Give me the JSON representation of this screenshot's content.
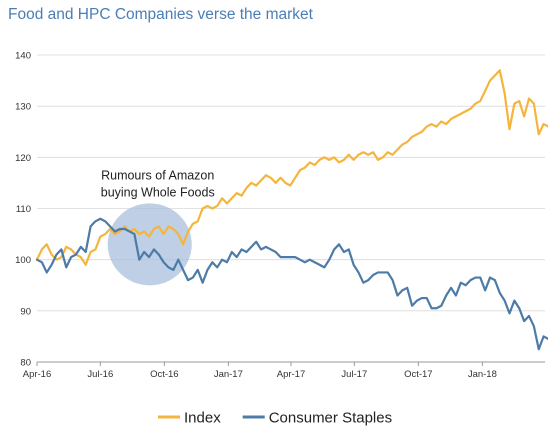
{
  "title": "Food and HPC Companies verse the market",
  "chart_data": {
    "type": "line",
    "title": "Food and HPC Companies verse the market",
    "xlabel": "",
    "ylabel": "",
    "ylim": [
      80,
      140
    ],
    "xlim": [
      "2016-04",
      "2018-04"
    ],
    "yticks": [
      80,
      90,
      100,
      110,
      120,
      130,
      140
    ],
    "xticks": [
      {
        "label": "Apr-16",
        "date": "2016-04"
      },
      {
        "label": "Jul-16",
        "date": "2016-07"
      },
      {
        "label": "Oct-16",
        "date": "2016-10"
      },
      {
        "label": "Jan-17",
        "date": "2017-01"
      },
      {
        "label": "Apr-17",
        "date": "2017-04"
      },
      {
        "label": "Jul-17",
        "date": "2017-07"
      },
      {
        "label": "Oct-17",
        "date": "2017-10"
      },
      {
        "label": "Jan-18",
        "date": "2018-01"
      }
    ],
    "grid": true,
    "legend_position": "bottom",
    "annotation": {
      "lines": [
        "Rumours of Amazon",
        "buying Whole Foods"
      ],
      "highlight_date": "2016-09-10",
      "highlight_value": 103,
      "highlight_color": "#a9bfdc"
    },
    "series": [
      {
        "name": "Index",
        "color": "#f5b53c",
        "points": [
          [
            "2016-04-01",
            100
          ],
          [
            "2016-04-08",
            102
          ],
          [
            "2016-04-15",
            103
          ],
          [
            "2016-04-22",
            101
          ],
          [
            "2016-04-29",
            100
          ],
          [
            "2016-05-06",
            100.5
          ],
          [
            "2016-05-13",
            102.5
          ],
          [
            "2016-05-20",
            102
          ],
          [
            "2016-05-27",
            101
          ],
          [
            "2016-06-03",
            100.5
          ],
          [
            "2016-06-10",
            99
          ],
          [
            "2016-06-17",
            101.5
          ],
          [
            "2016-06-24",
            102
          ],
          [
            "2016-07-01",
            104.5
          ],
          [
            "2016-07-08",
            105
          ],
          [
            "2016-07-15",
            106
          ],
          [
            "2016-07-22",
            105
          ],
          [
            "2016-07-29",
            105.5
          ],
          [
            "2016-08-05",
            106.5
          ],
          [
            "2016-08-12",
            105.5
          ],
          [
            "2016-08-19",
            106
          ],
          [
            "2016-08-26",
            105
          ],
          [
            "2016-09-02",
            105.5
          ],
          [
            "2016-09-09",
            104.5
          ],
          [
            "2016-09-16",
            106
          ],
          [
            "2016-09-23",
            106.5
          ],
          [
            "2016-09-30",
            105
          ],
          [
            "2016-10-07",
            106.5
          ],
          [
            "2016-10-14",
            106
          ],
          [
            "2016-10-21",
            105
          ],
          [
            "2016-10-28",
            103
          ],
          [
            "2016-11-04",
            105.5
          ],
          [
            "2016-11-11",
            107
          ],
          [
            "2016-11-18",
            107.5
          ],
          [
            "2016-11-25",
            110
          ],
          [
            "2016-12-02",
            110.5
          ],
          [
            "2016-12-09",
            110
          ],
          [
            "2016-12-16",
            110.5
          ],
          [
            "2016-12-23",
            112
          ],
          [
            "2016-12-30",
            111
          ],
          [
            "2017-01-06",
            112
          ],
          [
            "2017-01-13",
            113
          ],
          [
            "2017-01-20",
            112.5
          ],
          [
            "2017-01-27",
            114
          ],
          [
            "2017-02-03",
            115
          ],
          [
            "2017-02-10",
            114.5
          ],
          [
            "2017-02-17",
            115.5
          ],
          [
            "2017-02-24",
            116.5
          ],
          [
            "2017-03-03",
            116
          ],
          [
            "2017-03-10",
            115
          ],
          [
            "2017-03-17",
            116
          ],
          [
            "2017-03-24",
            115
          ],
          [
            "2017-03-31",
            114.5
          ],
          [
            "2017-04-07",
            116
          ],
          [
            "2017-04-14",
            117.5
          ],
          [
            "2017-04-21",
            118
          ],
          [
            "2017-04-28",
            119
          ],
          [
            "2017-05-05",
            118.5
          ],
          [
            "2017-05-12",
            119.5
          ],
          [
            "2017-05-19",
            120
          ],
          [
            "2017-05-26",
            119.5
          ],
          [
            "2017-06-02",
            120
          ],
          [
            "2017-06-09",
            119
          ],
          [
            "2017-06-16",
            119.5
          ],
          [
            "2017-06-23",
            120.5
          ],
          [
            "2017-06-30",
            119.5
          ],
          [
            "2017-07-07",
            120.5
          ],
          [
            "2017-07-14",
            121
          ],
          [
            "2017-07-21",
            120.5
          ],
          [
            "2017-07-28",
            121
          ],
          [
            "2017-08-04",
            119.5
          ],
          [
            "2017-08-11",
            120
          ],
          [
            "2017-08-18",
            121
          ],
          [
            "2017-08-25",
            120.5
          ],
          [
            "2017-09-01",
            121.5
          ],
          [
            "2017-09-08",
            122.5
          ],
          [
            "2017-09-15",
            123
          ],
          [
            "2017-09-22",
            124
          ],
          [
            "2017-09-29",
            124.5
          ],
          [
            "2017-10-06",
            125
          ],
          [
            "2017-10-13",
            126
          ],
          [
            "2017-10-20",
            126.5
          ],
          [
            "2017-10-27",
            126
          ],
          [
            "2017-11-03",
            127
          ],
          [
            "2017-11-10",
            126.5
          ],
          [
            "2017-11-17",
            127.5
          ],
          [
            "2017-11-24",
            128
          ],
          [
            "2017-12-01",
            128.5
          ],
          [
            "2017-12-08",
            129
          ],
          [
            "2017-12-15",
            129.5
          ],
          [
            "2017-12-22",
            130.5
          ],
          [
            "2017-12-29",
            131
          ],
          [
            "2018-01-05",
            133
          ],
          [
            "2018-01-12",
            135
          ],
          [
            "2018-01-19",
            136
          ],
          [
            "2018-01-26",
            137
          ],
          [
            "2018-02-02",
            132.5
          ],
          [
            "2018-02-09",
            125.5
          ],
          [
            "2018-02-16",
            130.5
          ],
          [
            "2018-02-23",
            131
          ],
          [
            "2018-03-02",
            128
          ],
          [
            "2018-03-09",
            131.5
          ],
          [
            "2018-03-16",
            130.5
          ],
          [
            "2018-03-23",
            124.5
          ],
          [
            "2018-03-30",
            126.5
          ],
          [
            "2018-04-06",
            126
          ]
        ]
      },
      {
        "name": "Consumer Staples",
        "color": "#4d7ba8",
        "points": [
          [
            "2016-04-01",
            100
          ],
          [
            "2016-04-08",
            99.5
          ],
          [
            "2016-04-15",
            97.5
          ],
          [
            "2016-04-22",
            99
          ],
          [
            "2016-04-29",
            101
          ],
          [
            "2016-05-06",
            102
          ],
          [
            "2016-05-13",
            98.5
          ],
          [
            "2016-05-20",
            100.5
          ],
          [
            "2016-05-27",
            101
          ],
          [
            "2016-06-03",
            102.5
          ],
          [
            "2016-06-10",
            101.5
          ],
          [
            "2016-06-17",
            106.5
          ],
          [
            "2016-06-24",
            107.5
          ],
          [
            "2016-07-01",
            108
          ],
          [
            "2016-07-08",
            107.5
          ],
          [
            "2016-07-15",
            106.5
          ],
          [
            "2016-07-22",
            105.5
          ],
          [
            "2016-07-29",
            106
          ],
          [
            "2016-08-05",
            106
          ],
          [
            "2016-08-12",
            105.5
          ],
          [
            "2016-08-19",
            105
          ],
          [
            "2016-08-26",
            100
          ],
          [
            "2016-09-02",
            101.5
          ],
          [
            "2016-09-09",
            100.5
          ],
          [
            "2016-09-16",
            102
          ],
          [
            "2016-09-23",
            101
          ],
          [
            "2016-09-30",
            99.5
          ],
          [
            "2016-10-07",
            98.5
          ],
          [
            "2016-10-14",
            98
          ],
          [
            "2016-10-21",
            100
          ],
          [
            "2016-10-28",
            98
          ],
          [
            "2016-11-04",
            96
          ],
          [
            "2016-11-11",
            96.5
          ],
          [
            "2016-11-18",
            98
          ],
          [
            "2016-11-25",
            95.5
          ],
          [
            "2016-12-02",
            98
          ],
          [
            "2016-12-09",
            99.5
          ],
          [
            "2016-12-16",
            98.5
          ],
          [
            "2016-12-23",
            100
          ],
          [
            "2016-12-30",
            99.5
          ],
          [
            "2017-01-06",
            101.5
          ],
          [
            "2017-01-13",
            100.5
          ],
          [
            "2017-01-20",
            102
          ],
          [
            "2017-01-27",
            101.5
          ],
          [
            "2017-02-03",
            102.5
          ],
          [
            "2017-02-10",
            103.5
          ],
          [
            "2017-02-17",
            102
          ],
          [
            "2017-02-24",
            102.5
          ],
          [
            "2017-03-03",
            102
          ],
          [
            "2017-03-10",
            101.5
          ],
          [
            "2017-03-17",
            100.5
          ],
          [
            "2017-03-24",
            100.5
          ],
          [
            "2017-03-31",
            100.5
          ],
          [
            "2017-04-07",
            100.5
          ],
          [
            "2017-04-14",
            100
          ],
          [
            "2017-04-21",
            99.5
          ],
          [
            "2017-04-28",
            100
          ],
          [
            "2017-05-05",
            99.5
          ],
          [
            "2017-05-12",
            99
          ],
          [
            "2017-05-19",
            98.5
          ],
          [
            "2017-05-26",
            100
          ],
          [
            "2017-06-02",
            102
          ],
          [
            "2017-06-09",
            103
          ],
          [
            "2017-06-16",
            101.5
          ],
          [
            "2017-06-23",
            102
          ],
          [
            "2017-06-30",
            99
          ],
          [
            "2017-07-07",
            97.5
          ],
          [
            "2017-07-14",
            95.5
          ],
          [
            "2017-07-21",
            96
          ],
          [
            "2017-07-28",
            97
          ],
          [
            "2017-08-04",
            97.5
          ],
          [
            "2017-08-11",
            97.5
          ],
          [
            "2017-08-18",
            97.5
          ],
          [
            "2017-08-25",
            96
          ],
          [
            "2017-09-01",
            93
          ],
          [
            "2017-09-08",
            94
          ],
          [
            "2017-09-15",
            94.5
          ],
          [
            "2017-09-22",
            91
          ],
          [
            "2017-09-29",
            92
          ],
          [
            "2017-10-06",
            92.5
          ],
          [
            "2017-10-13",
            92.5
          ],
          [
            "2017-10-20",
            90.5
          ],
          [
            "2017-10-27",
            90.5
          ],
          [
            "2017-11-03",
            91
          ],
          [
            "2017-11-10",
            93
          ],
          [
            "2017-11-17",
            94.5
          ],
          [
            "2017-11-24",
            93
          ],
          [
            "2017-12-01",
            95.5
          ],
          [
            "2017-12-08",
            95
          ],
          [
            "2017-12-15",
            96
          ],
          [
            "2017-12-22",
            96.5
          ],
          [
            "2017-12-29",
            96.5
          ],
          [
            "2018-01-05",
            94
          ],
          [
            "2018-01-12",
            96.5
          ],
          [
            "2018-01-19",
            96
          ],
          [
            "2018-01-26",
            93.5
          ],
          [
            "2018-02-02",
            92
          ],
          [
            "2018-02-09",
            89.5
          ],
          [
            "2018-02-16",
            92
          ],
          [
            "2018-02-23",
            90.5
          ],
          [
            "2018-03-02",
            88
          ],
          [
            "2018-03-09",
            89
          ],
          [
            "2018-03-16",
            87
          ],
          [
            "2018-03-23",
            82.5
          ],
          [
            "2018-03-30",
            85
          ],
          [
            "2018-04-06",
            84.5
          ]
        ]
      }
    ]
  }
}
